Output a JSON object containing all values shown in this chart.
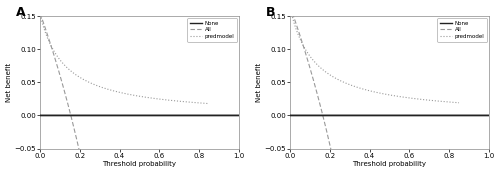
{
  "panel_labels": [
    "A",
    "B"
  ],
  "xlabel": "Threshold probability",
  "ylabel": "Net benefit",
  "legend_labels": [
    "None",
    "All",
    "predmodel"
  ],
  "xlim": [
    0.0,
    1.0
  ],
  "ylim": [
    -0.05,
    0.15
  ],
  "yticks": [
    -0.05,
    0.0,
    0.05,
    0.1,
    0.15
  ],
  "xticks": [
    0.0,
    0.2,
    0.4,
    0.6,
    0.8,
    1.0
  ],
  "none_color": "#222222",
  "all_color": "#999999",
  "pred_color": "#999999",
  "prevalence_A": 0.155,
  "prevalence_B": 0.165,
  "background_color": "#ffffff"
}
